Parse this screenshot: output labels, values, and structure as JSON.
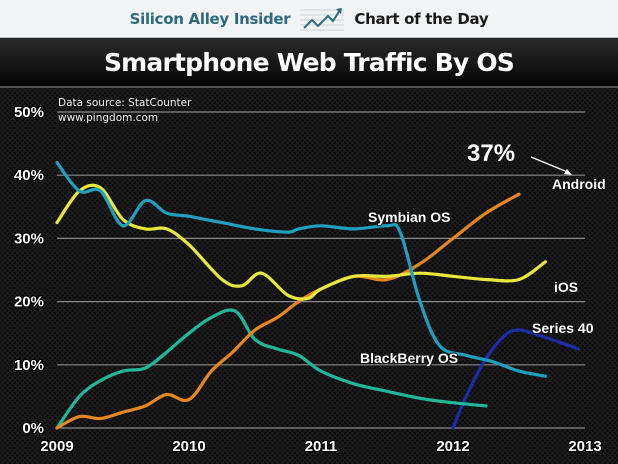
{
  "header": {
    "brand": "Silicon Alley Insider",
    "section": "Chart of the Day",
    "logo_icon": "rising-line-chart-icon",
    "brand_color": "#2d6a80"
  },
  "source": {
    "line1": "Data source: StatCounter",
    "line2": "www.pingdom.com"
  },
  "chart_data": {
    "type": "line",
    "title": "Smartphone Web Traffic By OS",
    "xlabel": "",
    "ylabel": "",
    "x_ticks": [
      "2009",
      "2010",
      "2011",
      "2012",
      "2013"
    ],
    "y_ticks": [
      "0%",
      "10%",
      "20%",
      "30%",
      "40%",
      "50%"
    ],
    "xlim": [
      2009,
      2013
    ],
    "ylim": [
      0,
      50
    ],
    "grid": true,
    "legend": "inline-labels",
    "annotation": {
      "text": "37%",
      "target_series": "Android",
      "value": 37
    },
    "series": [
      {
        "name": "Symbian OS",
        "color": "#1ea1c0",
        "points": [
          [
            2009.0,
            42
          ],
          [
            2009.17,
            37.5
          ],
          [
            2009.33,
            37.5
          ],
          [
            2009.5,
            32
          ],
          [
            2009.67,
            36
          ],
          [
            2009.83,
            34
          ],
          [
            2010.0,
            33.5
          ],
          [
            2010.25,
            32.5
          ],
          [
            2010.5,
            31.5
          ],
          [
            2010.75,
            31
          ],
          [
            2010.83,
            31.5
          ],
          [
            2011.0,
            32
          ],
          [
            2011.25,
            31.5
          ],
          [
            2011.5,
            32
          ],
          [
            2011.6,
            31
          ],
          [
            2011.75,
            20
          ],
          [
            2011.9,
            13
          ],
          [
            2012.1,
            11.5
          ],
          [
            2012.3,
            10.5
          ],
          [
            2012.5,
            9
          ],
          [
            2012.7,
            8.2
          ]
        ]
      },
      {
        "name": "iOS",
        "color": "#e8e83a",
        "points": [
          [
            2009.0,
            32.5
          ],
          [
            2009.17,
            37.5
          ],
          [
            2009.33,
            38
          ],
          [
            2009.5,
            33
          ],
          [
            2009.67,
            31.5
          ],
          [
            2009.83,
            31.5
          ],
          [
            2010.0,
            29
          ],
          [
            2010.25,
            23.5
          ],
          [
            2010.4,
            22.5
          ],
          [
            2010.55,
            24.5
          ],
          [
            2010.75,
            21
          ],
          [
            2010.9,
            20.5
          ],
          [
            2011.0,
            22
          ],
          [
            2011.25,
            24
          ],
          [
            2011.5,
            24
          ],
          [
            2011.75,
            24.5
          ],
          [
            2012.0,
            24
          ],
          [
            2012.25,
            23.5
          ],
          [
            2012.5,
            23.5
          ],
          [
            2012.7,
            26.3
          ]
        ]
      },
      {
        "name": "Android",
        "color": "#e8861e",
        "points": [
          [
            2009.0,
            0
          ],
          [
            2009.17,
            1.8
          ],
          [
            2009.33,
            1.5
          ],
          [
            2009.5,
            2.5
          ],
          [
            2009.67,
            3.5
          ],
          [
            2009.83,
            5.3
          ],
          [
            2010.0,
            4.5
          ],
          [
            2010.17,
            9
          ],
          [
            2010.33,
            12
          ],
          [
            2010.5,
            15.5
          ],
          [
            2010.67,
            17.5
          ],
          [
            2010.83,
            20
          ],
          [
            2011.0,
            22
          ],
          [
            2011.25,
            24
          ],
          [
            2011.5,
            23.5
          ],
          [
            2011.75,
            26
          ],
          [
            2012.0,
            30
          ],
          [
            2012.25,
            34
          ],
          [
            2012.5,
            37
          ]
        ]
      },
      {
        "name": "BlackBerry OS",
        "color": "#1fb89a",
        "points": [
          [
            2009.0,
            0
          ],
          [
            2009.17,
            5
          ],
          [
            2009.33,
            7.5
          ],
          [
            2009.5,
            9
          ],
          [
            2009.67,
            9.5
          ],
          [
            2009.83,
            12
          ],
          [
            2010.0,
            15
          ],
          [
            2010.17,
            17.5
          ],
          [
            2010.35,
            18.5
          ],
          [
            2010.5,
            14
          ],
          [
            2010.67,
            12.5
          ],
          [
            2010.83,
            11.5
          ],
          [
            2011.0,
            9
          ],
          [
            2011.25,
            7
          ],
          [
            2011.5,
            5.8
          ],
          [
            2011.75,
            4.7
          ],
          [
            2012.0,
            4
          ],
          [
            2012.25,
            3.5
          ]
        ]
      },
      {
        "name": "Series 40",
        "color": "#1a2ea8",
        "points": [
          [
            2012.0,
            0
          ],
          [
            2012.1,
            5
          ],
          [
            2012.25,
            11
          ],
          [
            2012.4,
            14.8
          ],
          [
            2012.5,
            15.5
          ],
          [
            2012.6,
            15
          ],
          [
            2012.75,
            14
          ],
          [
            2012.95,
            12.5
          ]
        ]
      }
    ],
    "labels": [
      {
        "series": "Symbian OS",
        "text": "Symbian OS"
      },
      {
        "series": "iOS",
        "text": "iOS"
      },
      {
        "series": "Android",
        "text": "Android"
      },
      {
        "series": "BlackBerry OS",
        "text": "BlackBerry OS"
      },
      {
        "series": "Series 40",
        "text": "Series 40"
      }
    ]
  }
}
